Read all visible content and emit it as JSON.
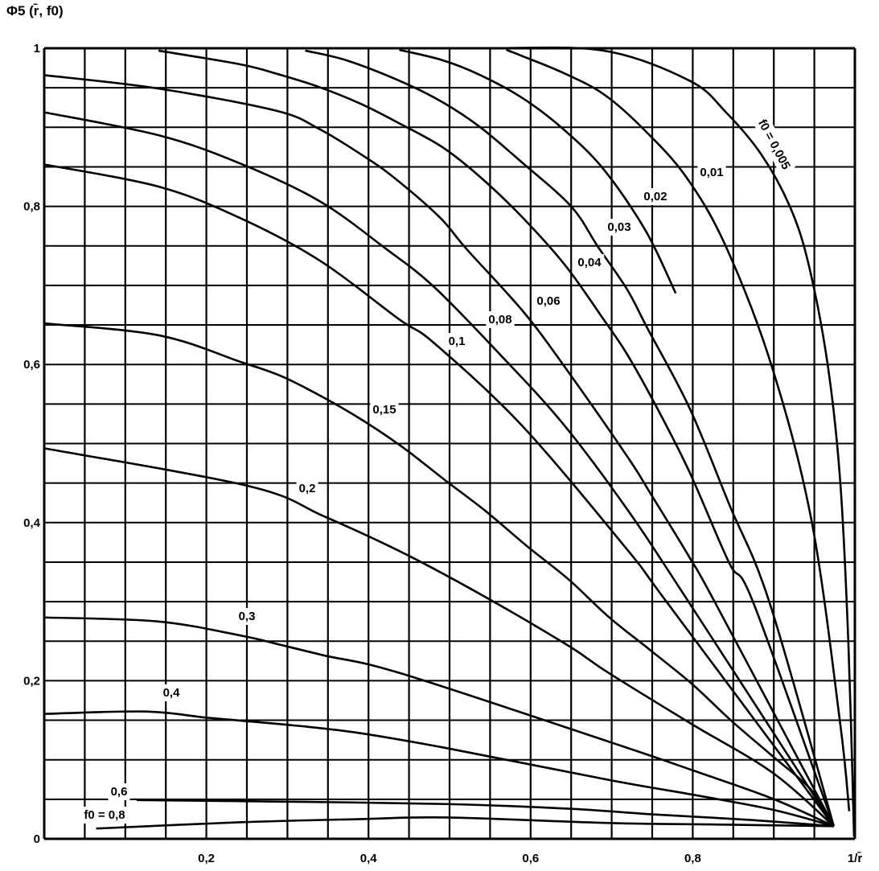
{
  "chart_data": {
    "type": "line",
    "title": "",
    "ylabel": "Φ5 (r̄, f0)",
    "xlabel": "1/r̄",
    "xlim": [
      0,
      1
    ],
    "ylim": [
      0,
      1
    ],
    "grid": true,
    "grid_step": 0.05,
    "line_color": "#000000",
    "x_ticks": [
      {
        "value": 0.2,
        "label": "0,2"
      },
      {
        "value": 0.4,
        "label": "0,4"
      },
      {
        "value": 0.6,
        "label": "0,6"
      },
      {
        "value": 0.8,
        "label": "0,8"
      },
      {
        "value": 1.0,
        "label": "1/r̄"
      }
    ],
    "y_ticks": [
      {
        "value": 0,
        "label": "0"
      },
      {
        "value": 0.2,
        "label": "0,2"
      },
      {
        "value": 0.4,
        "label": "0,4"
      },
      {
        "value": 0.6,
        "label": "0,6"
      },
      {
        "value": 0.8,
        "label": "0,8"
      },
      {
        "value": 1.0,
        "label": "1"
      }
    ],
    "series": [
      {
        "name": "f0 = 0,005",
        "x": [
          0.55,
          0.69,
          0.796,
          0.841,
          0.885,
          0.921,
          0.944,
          0.967,
          0.982,
          0.992,
          0.999
        ],
        "y": [
          1.0,
          0.997,
          0.959,
          0.919,
          0.865,
          0.797,
          0.722,
          0.596,
          0.451,
          0.247,
          0.003
        ]
      },
      {
        "name": "0,01",
        "x": [
          0.57,
          0.59,
          0.64,
          0.69,
          0.739,
          0.792,
          0.841,
          0.898,
          0.947,
          0.982,
          0.993
        ],
        "y": [
          0.998,
          0.99,
          0.969,
          0.942,
          0.898,
          0.837,
          0.749,
          0.596,
          0.4,
          0.145,
          0.035
        ]
      },
      {
        "name": "0,02",
        "x": [
          0.438,
          0.491,
          0.538,
          0.59,
          0.64,
          0.69,
          0.742,
          0.779
        ],
        "y": [
          0.998,
          0.985,
          0.966,
          0.937,
          0.898,
          0.847,
          0.769,
          0.69
        ]
      },
      {
        "name": "0,03",
        "x": [
          0.322,
          0.372,
          0.438,
          0.491,
          0.538,
          0.59,
          0.65,
          0.683,
          0.719,
          0.744,
          0.796,
          0.845,
          0.895,
          0.974
        ],
        "y": [
          0.997,
          0.985,
          0.959,
          0.932,
          0.9,
          0.855,
          0.8,
          0.749,
          0.695,
          0.646,
          0.545,
          0.423,
          0.298,
          0.016
        ]
      },
      {
        "name": "0,04",
        "x": [
          0.141,
          0.24,
          0.286,
          0.339,
          0.392,
          0.438,
          0.491,
          0.538,
          0.59,
          0.643,
          0.69,
          0.719,
          0.756,
          0.796,
          0.845,
          0.875,
          0.974
        ],
        "y": [
          0.997,
          0.98,
          0.968,
          0.951,
          0.929,
          0.905,
          0.875,
          0.837,
          0.786,
          0.725,
          0.657,
          0.613,
          0.545,
          0.464,
          0.349,
          0.298,
          0.016
        ]
      },
      {
        "name": "0,06",
        "x": [
          0,
          0.141,
          0.286,
          0.339,
          0.392,
          0.432,
          0.488,
          0.521,
          0.59,
          0.64,
          0.719,
          0.746,
          0.796,
          0.828,
          0.974
        ],
        "y": [
          0.966,
          0.949,
          0.921,
          0.898,
          0.865,
          0.836,
          0.786,
          0.746,
          0.668,
          0.6,
          0.484,
          0.44,
          0.356,
          0.298,
          0.016
        ]
      },
      {
        "name": "0,08",
        "x": [
          0,
          0.141,
          0.24,
          0.339,
          0.422,
          0.481,
          0.561,
          0.64,
          0.719,
          0.796,
          0.974
        ],
        "y": [
          0.919,
          0.89,
          0.855,
          0.807,
          0.746,
          0.698,
          0.614,
          0.525,
          0.417,
          0.298,
          0.016
        ]
      },
      {
        "name": "0,1",
        "x": [
          0,
          0.141,
          0.24,
          0.339,
          0.438,
          0.481,
          0.59,
          0.719,
          0.769,
          0.974
        ],
        "y": [
          0.853,
          0.825,
          0.786,
          0.732,
          0.657,
          0.627,
          0.522,
          0.366,
          0.298,
          0.016
        ]
      },
      {
        "name": "0,15",
        "x": [
          0,
          0.141,
          0.243,
          0.293,
          0.345,
          0.395,
          0.444,
          0.494,
          0.544,
          0.597,
          0.647,
          0.696,
          0.746,
          0.799,
          0.848,
          0.898,
          0.947,
          0.974
        ],
        "y": [
          0.652,
          0.637,
          0.603,
          0.585,
          0.558,
          0.528,
          0.494,
          0.454,
          0.415,
          0.369,
          0.328,
          0.281,
          0.24,
          0.196,
          0.149,
          0.105,
          0.061,
          0.016
        ]
      },
      {
        "name": "0,2",
        "x": [
          0,
          0.253,
          0.345,
          0.444,
          0.544,
          0.647,
          0.696,
          0.799,
          0.898,
          0.974
        ],
        "y": [
          0.494,
          0.446,
          0.408,
          0.361,
          0.306,
          0.244,
          0.21,
          0.145,
          0.084,
          0.016
        ]
      },
      {
        "name": "0,3",
        "x": [
          0,
          0.14,
          0.243,
          0.293,
          0.345,
          0.441,
          0.699,
          0.799,
          0.898,
          0.974
        ],
        "y": [
          0.28,
          0.275,
          0.257,
          0.245,
          0.232,
          0.209,
          0.122,
          0.087,
          0.051,
          0.016
        ]
      },
      {
        "name": "0,4",
        "x": [
          0,
          0.124,
          0.203,
          0.292,
          0.381,
          0.495,
          0.699,
          0.799,
          0.898,
          0.974
        ],
        "y": [
          0.158,
          0.161,
          0.153,
          0.145,
          0.135,
          0.115,
          0.074,
          0.056,
          0.037,
          0.016
        ]
      },
      {
        "name": "0,6",
        "x": [
          0.114,
          0.3,
          0.496,
          0.65,
          0.75,
          0.87,
          0.974
        ],
        "y": [
          0.049,
          0.047,
          0.044,
          0.038,
          0.031,
          0.024,
          0.016
        ]
      },
      {
        "name": "f0 = 0,8",
        "x": [
          0.064,
          0.243,
          0.392,
          0.496,
          0.699,
          0.838,
          0.974
        ],
        "y": [
          0.013,
          0.021,
          0.025,
          0.027,
          0.02,
          0.018,
          0.016
        ]
      }
    ]
  }
}
